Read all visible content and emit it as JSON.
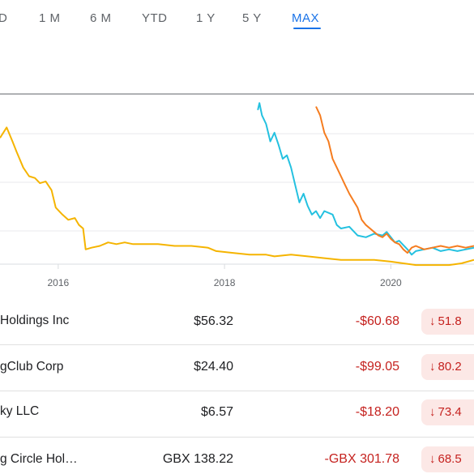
{
  "tabs": [
    {
      "label": "D",
      "active": false
    },
    {
      "label": "1 M",
      "active": false
    },
    {
      "label": "6 M",
      "active": false
    },
    {
      "label": "YTD",
      "active": false
    },
    {
      "label": "1 Y",
      "active": false
    },
    {
      "label": "5 Y",
      "active": false
    },
    {
      "label": "MAX",
      "active": true
    }
  ],
  "colors": {
    "accent": "#1a73e8",
    "negative": "#c5221f",
    "negative_bg": "#fce8e6",
    "series_yellow": "#f5b400",
    "series_blue": "#24c1e0",
    "series_orange": "#f57c1f",
    "reference_line": "#5f6368"
  },
  "chart_data": {
    "type": "line",
    "x_tick_labels": [
      "2016",
      "2018",
      "2020"
    ],
    "xlim": [
      2015.3,
      2021.0
    ],
    "ylim": [
      0,
      100
    ],
    "grid": true,
    "series": [
      {
        "color": "#f5b400",
        "points": [
          [
            2015.3,
            72
          ],
          [
            2015.38,
            78
          ],
          [
            2015.45,
            70
          ],
          [
            2015.5,
            64
          ],
          [
            2015.58,
            55
          ],
          [
            2015.65,
            50
          ],
          [
            2015.72,
            49
          ],
          [
            2015.78,
            46
          ],
          [
            2015.85,
            47
          ],
          [
            2015.92,
            42
          ],
          [
            2015.97,
            32
          ],
          [
            2016.05,
            28
          ],
          [
            2016.12,
            25
          ],
          [
            2016.2,
            26
          ],
          [
            2016.25,
            22
          ],
          [
            2016.3,
            20
          ],
          [
            2016.33,
            8
          ],
          [
            2016.4,
            9
          ],
          [
            2016.5,
            10
          ],
          [
            2016.6,
            12
          ],
          [
            2016.7,
            11
          ],
          [
            2016.8,
            12
          ],
          [
            2016.9,
            11
          ],
          [
            2017.0,
            11
          ],
          [
            2017.2,
            11
          ],
          [
            2017.4,
            10
          ],
          [
            2017.6,
            10
          ],
          [
            2017.8,
            9
          ],
          [
            2017.9,
            7
          ],
          [
            2018.1,
            6
          ],
          [
            2018.3,
            5
          ],
          [
            2018.5,
            5
          ],
          [
            2018.6,
            4
          ],
          [
            2018.8,
            5
          ],
          [
            2019.0,
            4
          ],
          [
            2019.2,
            3
          ],
          [
            2019.4,
            2
          ],
          [
            2019.6,
            2
          ],
          [
            2019.8,
            2
          ],
          [
            2020.0,
            1
          ],
          [
            2020.15,
            0
          ],
          [
            2020.3,
            -1
          ],
          [
            2020.5,
            -1
          ],
          [
            2020.7,
            -1
          ],
          [
            2020.85,
            0
          ],
          [
            2021.0,
            2
          ]
        ]
      },
      {
        "color": "#24c1e0",
        "points": [
          [
            2018.4,
            88
          ],
          [
            2018.42,
            92
          ],
          [
            2018.45,
            85
          ],
          [
            2018.5,
            80
          ],
          [
            2018.55,
            70
          ],
          [
            2018.6,
            75
          ],
          [
            2018.65,
            68
          ],
          [
            2018.7,
            60
          ],
          [
            2018.75,
            62
          ],
          [
            2018.8,
            55
          ],
          [
            2018.85,
            45
          ],
          [
            2018.9,
            35
          ],
          [
            2018.95,
            40
          ],
          [
            2019.0,
            33
          ],
          [
            2019.05,
            28
          ],
          [
            2019.1,
            30
          ],
          [
            2019.15,
            26
          ],
          [
            2019.2,
            30
          ],
          [
            2019.3,
            28
          ],
          [
            2019.35,
            22
          ],
          [
            2019.4,
            20
          ],
          [
            2019.5,
            21
          ],
          [
            2019.6,
            16
          ],
          [
            2019.7,
            15
          ],
          [
            2019.8,
            17
          ],
          [
            2019.9,
            16
          ],
          [
            2019.95,
            18
          ],
          [
            2020.0,
            15
          ],
          [
            2020.05,
            12
          ],
          [
            2020.1,
            13
          ],
          [
            2020.2,
            8
          ],
          [
            2020.25,
            5
          ],
          [
            2020.3,
            7
          ],
          [
            2020.4,
            8
          ],
          [
            2020.5,
            9
          ],
          [
            2020.6,
            7
          ],
          [
            2020.7,
            8
          ],
          [
            2020.8,
            7
          ],
          [
            2020.9,
            8
          ],
          [
            2021.0,
            9
          ]
        ]
      },
      {
        "color": "#f57c1f",
        "points": [
          [
            2019.1,
            90
          ],
          [
            2019.15,
            85
          ],
          [
            2019.2,
            75
          ],
          [
            2019.25,
            70
          ],
          [
            2019.3,
            60
          ],
          [
            2019.35,
            55
          ],
          [
            2019.4,
            50
          ],
          [
            2019.45,
            45
          ],
          [
            2019.5,
            40
          ],
          [
            2019.55,
            36
          ],
          [
            2019.6,
            32
          ],
          [
            2019.65,
            25
          ],
          [
            2019.7,
            22
          ],
          [
            2019.75,
            20
          ],
          [
            2019.8,
            18
          ],
          [
            2019.85,
            16
          ],
          [
            2019.9,
            15
          ],
          [
            2019.95,
            17
          ],
          [
            2020.0,
            14
          ],
          [
            2020.05,
            12
          ],
          [
            2020.1,
            11
          ],
          [
            2020.15,
            8
          ],
          [
            2020.2,
            6
          ],
          [
            2020.25,
            9
          ],
          [
            2020.3,
            10
          ],
          [
            2020.4,
            8
          ],
          [
            2020.5,
            9
          ],
          [
            2020.6,
            10
          ],
          [
            2020.7,
            9
          ],
          [
            2020.8,
            10
          ],
          [
            2020.9,
            9
          ],
          [
            2021.0,
            10
          ]
        ]
      }
    ]
  },
  "rows": [
    {
      "name": "Holdings Inc",
      "price": "$56.32",
      "change": "-$60.68",
      "percent": "51.8"
    },
    {
      "name": "gClub Corp",
      "price": "$24.40",
      "change": "-$99.05",
      "percent": "80.2"
    },
    {
      "name": "ky LLC",
      "price": "$6.57",
      "change": "-$18.20",
      "percent": "73.4"
    },
    {
      "name": "g Circle Hol…",
      "price": "GBX 138.22",
      "change": "-GBX 301.78",
      "percent": "68.5"
    }
  ]
}
